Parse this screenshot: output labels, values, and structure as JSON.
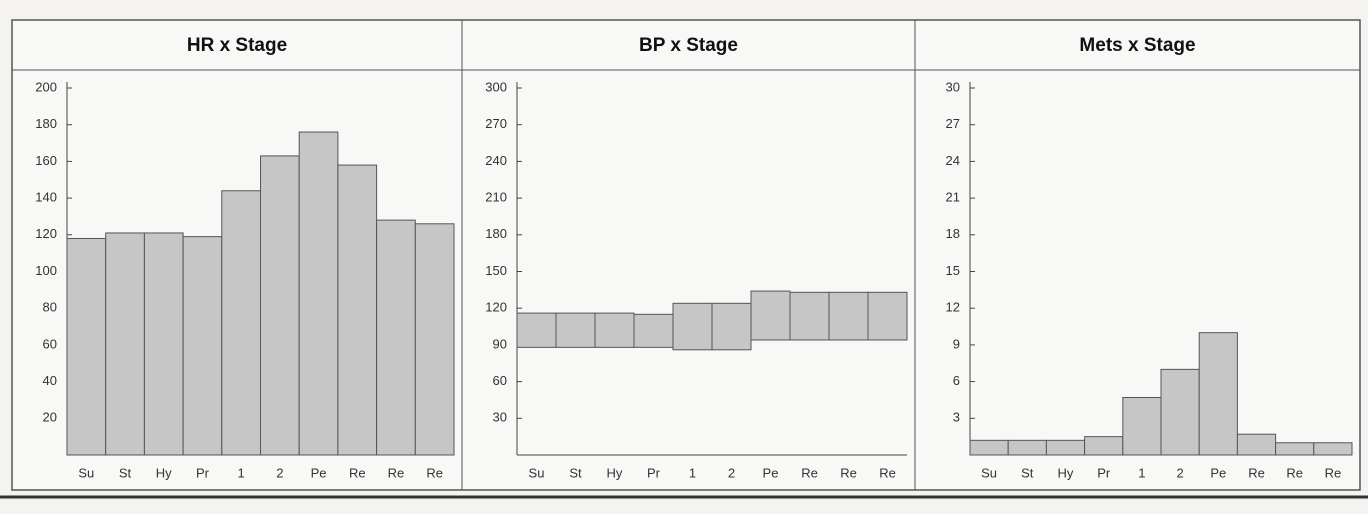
{
  "chart_data": [
    {
      "type": "bar",
      "title": "HR x Stage",
      "categories": [
        "Su",
        "St",
        "Hy",
        "Pr",
        "1",
        "2",
        "Pe",
        "Re",
        "Re",
        "Re"
      ],
      "values": [
        118,
        121,
        121,
        119,
        144,
        163,
        176,
        158,
        128,
        126
      ],
      "color": "#c6c6c6",
      "ylim": [
        0,
        200
      ],
      "yticks": [
        20,
        40,
        60,
        80,
        100,
        120,
        140,
        160,
        180,
        200
      ]
    },
    {
      "type": "range",
      "title": "BP x Stage",
      "categories": [
        "Su",
        "St",
        "Hy",
        "Pr",
        "1",
        "2",
        "Pe",
        "Re",
        "Re",
        "Re"
      ],
      "ranges": [
        [
          88,
          116
        ],
        [
          88,
          116
        ],
        [
          88,
          116
        ],
        [
          88,
          115
        ],
        [
          86,
          124
        ],
        [
          86,
          124
        ],
        [
          94,
          134
        ],
        [
          94,
          133
        ],
        [
          94,
          133
        ],
        [
          94,
          133
        ]
      ],
      "color": "#c6c6c6",
      "ylim": [
        0,
        300
      ],
      "yticks": [
        30,
        60,
        90,
        120,
        150,
        180,
        210,
        240,
        270,
        300
      ]
    },
    {
      "type": "bar",
      "title": "Mets x Stage",
      "categories": [
        "Su",
        "St",
        "Hy",
        "Pr",
        "1",
        "2",
        "Pe",
        "Re",
        "Re",
        "Re"
      ],
      "values": [
        1.2,
        1.2,
        1.2,
        1.5,
        4.7,
        7,
        10,
        1.7,
        1,
        1
      ],
      "color": "#c6c6c6",
      "ylim": [
        0,
        30
      ],
      "yticks": [
        3,
        6,
        9,
        12,
        15,
        18,
        21,
        24,
        27,
        30
      ]
    }
  ]
}
